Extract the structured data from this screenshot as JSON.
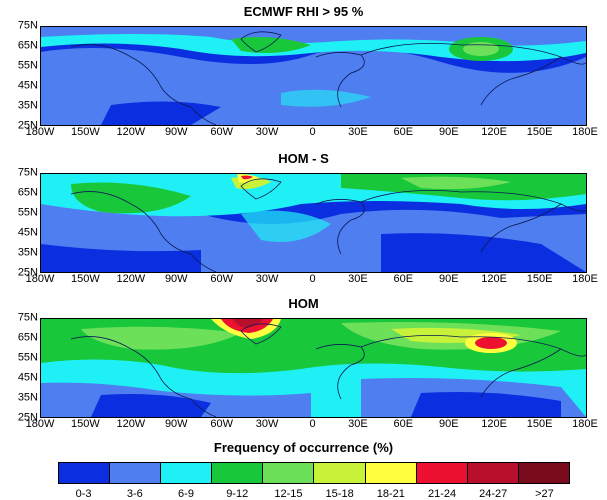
{
  "panels": [
    {
      "title": "ECMWF RHI > 95 %"
    },
    {
      "title": "HOM - S"
    },
    {
      "title": "HOM"
    }
  ],
  "lat_labels": [
    "75N",
    "65N",
    "55N",
    "45N",
    "35N",
    "25N"
  ],
  "lon_labels": [
    "180W",
    "150W",
    "120W",
    "90W",
    "60W",
    "30W",
    "0",
    "30E",
    "60E",
    "90E",
    "120E",
    "150E",
    "180E"
  ],
  "legend": {
    "title": "Frequency of occurrence (%)",
    "bins": [
      {
        "label": "0-3",
        "color": "#0b2fe0"
      },
      {
        "label": "3-6",
        "color": "#4f7ef0"
      },
      {
        "label": "6-9",
        "color": "#1ff0f5"
      },
      {
        "label": "9-12",
        "color": "#18c83a"
      },
      {
        "label": "12-15",
        "color": "#6de05a"
      },
      {
        "label": "15-18",
        "color": "#c8f23a"
      },
      {
        "label": "18-21",
        "color": "#ffff40"
      },
      {
        "label": "21-24",
        "color": "#ee1030"
      },
      {
        "label": "24-27",
        "color": "#b8102c"
      },
      {
        "label": ">27",
        "color": "#7a0a1e"
      }
    ]
  }
}
